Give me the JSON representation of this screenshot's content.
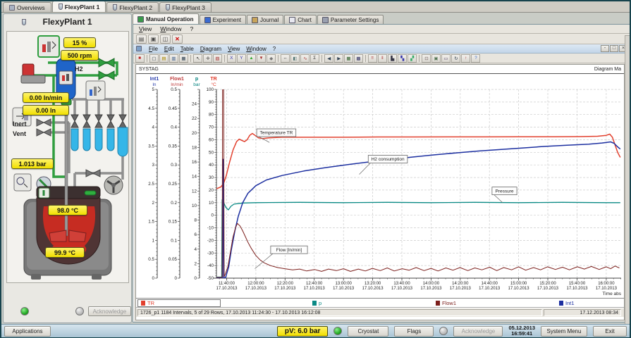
{
  "top_tabs": {
    "items": [
      {
        "label": "Overviews",
        "icon": "monitor-icon",
        "active": false
      },
      {
        "label": "FlexyPlant 1",
        "icon": "flask-icon",
        "active": true
      },
      {
        "label": "FlexyPlant 2",
        "icon": "flask-icon",
        "active": false
      },
      {
        "label": "FlexyPlant 3",
        "icon": "flask-icon",
        "active": false
      }
    ]
  },
  "left_panel": {
    "title": "FlexyPlant 1",
    "badges": {
      "stirrer_percent": "15 %",
      "stirrer_rpm": "500 rpm",
      "gas_flow": "0.00 ln/min",
      "gas_volume": "0.00 ln",
      "pressure": "1.013 bar",
      "temp_top": "98.0 °C",
      "temp_bottom": "99.9 °C"
    },
    "labels": {
      "h2": "H2",
      "inert": "Inert",
      "vent": "Vent"
    },
    "acknowledge_label": "Acknowledge"
  },
  "inner_tabs": {
    "items": [
      {
        "label": "Manual Operation",
        "icon": "grid-green-icon",
        "color": "#3a9a4a",
        "active": true
      },
      {
        "label": "Experiment",
        "icon": "experiment-icon",
        "color": "#3a6ad0",
        "active": false
      },
      {
        "label": "Journal",
        "icon": "journal-icon",
        "color": "#c8a45a",
        "active": false
      },
      {
        "label": "Chart",
        "icon": "chart-icon",
        "color": "#e8e8f0",
        "active": false
      },
      {
        "label": "Parameter Settings",
        "icon": "settings-icon",
        "color": "#9aa0b0",
        "active": false
      }
    ]
  },
  "chart_window": {
    "menu1": [
      "View",
      "Window",
      "?"
    ],
    "toolbar1_icons": [
      {
        "name": "print-icon",
        "glyph": "▤"
      },
      {
        "name": "export-icon",
        "glyph": "▣"
      },
      {
        "name": "window-split-icon",
        "glyph": "◫"
      },
      {
        "name": "close-red-icon",
        "glyph": "✕"
      }
    ],
    "menu2": [
      "File",
      "Edit",
      "Table",
      "Diagram",
      "View",
      "Window",
      "?"
    ],
    "window_buttons": [
      "-",
      "□",
      "×"
    ],
    "toolbar2_icons": [
      {
        "name": "stop-icon",
        "glyph": "■",
        "color": "#b22"
      },
      {
        "name": "new-icon",
        "glyph": "▢",
        "color": "#345"
      },
      {
        "name": "open-icon",
        "glyph": "▤",
        "color": "#a80"
      },
      {
        "name": "save-icon",
        "glyph": "▥",
        "color": "#358"
      },
      {
        "name": "copy-icon",
        "glyph": "▦",
        "color": "#345"
      },
      {
        "name": "cursor-icon",
        "glyph": "↖",
        "color": "#333"
      },
      {
        "name": "snap-icon",
        "glyph": "✛",
        "color": "#333"
      },
      {
        "name": "erase-icon",
        "glyph": "▧",
        "color": "#a33"
      },
      {
        "name": "scale-x-icon",
        "glyph": "X",
        "color": "#33a"
      },
      {
        "name": "scale-y-icon",
        "glyph": "Y",
        "color": "#33a"
      },
      {
        "name": "zoom-in-icon",
        "glyph": "▲",
        "color": "#3a3"
      },
      {
        "name": "zoom-out-icon",
        "glyph": "▼",
        "color": "#a33"
      },
      {
        "name": "zoom-reset-icon",
        "glyph": "◆",
        "color": "#777"
      },
      {
        "name": "pan-icon",
        "glyph": "↔",
        "color": "#333"
      },
      {
        "name": "crop-icon",
        "glyph": "◧",
        "color": "#577"
      },
      {
        "name": "curve-icon",
        "glyph": "∿",
        "color": "#a33"
      },
      {
        "name": "sum-icon",
        "glyph": "Σ",
        "color": "#333"
      },
      {
        "name": "prev-icon",
        "glyph": "◀",
        "color": "#345"
      },
      {
        "name": "next-icon",
        "glyph": "▶",
        "color": "#345"
      },
      {
        "name": "table-icon",
        "glyph": "▦",
        "color": "#363"
      },
      {
        "name": "diagram-icon",
        "glyph": "▩",
        "color": "#336"
      },
      {
        "name": "tile-icon",
        "glyph": "≡",
        "color": "#a33"
      },
      {
        "name": "cascade-icon",
        "glyph": "‖",
        "color": "#a33"
      },
      {
        "name": "legend-icon",
        "glyph": "▙",
        "color": "#334"
      },
      {
        "name": "palette-icon",
        "glyph": "▚",
        "color": "#33a"
      },
      {
        "name": "chart-type-icon",
        "glyph": "▞",
        "color": "#3a6"
      },
      {
        "name": "export-page-icon",
        "glyph": "⊡",
        "color": "#766"
      },
      {
        "name": "image-icon",
        "glyph": "▣",
        "color": "#575"
      },
      {
        "name": "mail-icon",
        "glyph": "▭",
        "color": "#657"
      },
      {
        "name": "refresh-icon",
        "glyph": "↻",
        "color": "#345"
      },
      {
        "name": "up-icon",
        "glyph": "↑",
        "color": "#a33"
      },
      {
        "name": "help-icon",
        "glyph": "?",
        "color": "#36c"
      }
    ],
    "doc_title_left": "SYSTAG",
    "doc_title_right": "Diagram Ma",
    "status_left": "1726_p1 1184 Intervals, 5 of 29 Rows, 17.10.2013 11:24:30 - 17.10.2013 16:12:08",
    "status_right": "17.12.2013 08:34"
  },
  "taskbar": {
    "applications": "Applications",
    "pv_value": "pV: 6.0 bar",
    "cryostat": "Cryostat",
    "flags": "Flags",
    "acknowledge": "Acknowledge",
    "date": "05.12.2013",
    "time": "16:59:41",
    "system_menu": "System Menu",
    "exit": "Exit"
  },
  "chart_data": {
    "type": "line",
    "xlabel": "Time abs",
    "grid": true,
    "x_domain": [
      11.55,
      16.17
    ],
    "x_major_ticks": [
      11.6667,
      12,
      12.3333,
      12.6667,
      13,
      13.3333,
      13.6667,
      14,
      14.3333,
      14.6667,
      15,
      15.3333,
      15.6667,
      16
    ],
    "x_tick_labels": [
      [
        "11:40:00",
        "17.10.2013"
      ],
      [
        "12:00:00",
        "17.10.2013"
      ],
      [
        "12:20:00",
        "17.10.2013"
      ],
      [
        "12:40:00",
        "17.10.2013"
      ],
      [
        "13:00:00",
        "17.10.2013"
      ],
      [
        "13:20:00",
        "17.10.2013"
      ],
      [
        "13:40:00",
        "17.10.2013"
      ],
      [
        "14:00:00",
        "17.10.2013"
      ],
      [
        "14:20:00",
        "17.10.2013"
      ],
      [
        "14:40:00",
        "17.10.2013"
      ],
      [
        "15:00:00",
        "17.10.2013"
      ],
      [
        "15:20:00",
        "17.10.2013"
      ],
      [
        "15:40:00",
        "17.10.2013"
      ],
      [
        "16:00:00",
        "17.10.2013"
      ]
    ],
    "axes": [
      {
        "name": "Int1",
        "unit": "ln",
        "color": "#2b3fae",
        "min": 0,
        "max": 5,
        "label_step": 0.5,
        "hide_top_label": false
      },
      {
        "name": "Flow1",
        "unit": "ln/min",
        "color": "#c04040",
        "min": 0,
        "max": 0.5,
        "label_step": 0.05,
        "hide_top_label": false
      },
      {
        "name": "p",
        "unit": "bar",
        "color": "#00807d",
        "min": 0,
        "max": 26,
        "label_step": 2,
        "hide_top_label": true
      },
      {
        "name": "TR",
        "unit": "°C",
        "color": "#e03a2a",
        "min": -50,
        "max": 100,
        "label_step": 10,
        "hide_top_label": false
      }
    ],
    "series": [
      {
        "name": "TR",
        "axis": "TR",
        "color": "#e2402e",
        "width": 1.5,
        "points": [
          [
            11.55,
            21
          ],
          [
            11.6,
            22.5
          ],
          [
            11.63,
            25
          ],
          [
            11.66,
            31
          ],
          [
            11.7,
            42
          ],
          [
            11.74,
            52
          ],
          [
            11.78,
            58.5
          ],
          [
            11.81,
            60.5
          ],
          [
            11.84,
            59.5
          ],
          [
            11.87,
            58.5
          ],
          [
            11.9,
            60
          ],
          [
            11.93,
            63.5
          ],
          [
            11.96,
            65
          ],
          [
            11.99,
            63.5
          ],
          [
            12.03,
            61.5
          ],
          [
            12.08,
            61
          ],
          [
            12.15,
            61.5
          ],
          [
            12.3,
            62
          ],
          [
            12.6,
            62
          ],
          [
            13,
            62
          ],
          [
            13.4,
            62.2
          ],
          [
            13.8,
            62.2
          ],
          [
            14.2,
            62.3
          ],
          [
            14.6,
            62.3
          ],
          [
            15,
            62.4
          ],
          [
            15.4,
            62.4
          ],
          [
            15.7,
            62.5
          ],
          [
            15.9,
            62.8
          ],
          [
            16,
            63.5
          ],
          [
            16.04,
            64.5
          ],
          [
            16.07,
            62
          ],
          [
            16.1,
            56
          ],
          [
            16.13,
            50
          ],
          [
            16.16,
            46
          ]
        ]
      },
      {
        "name": "p",
        "axis": "p",
        "color": "#0a8a85",
        "width": 1.3,
        "points": [
          [
            11.55,
            0.15
          ],
          [
            11.61,
            0.15
          ],
          [
            11.615,
            10.8
          ],
          [
            11.63,
            10.5
          ],
          [
            11.655,
            9.8
          ],
          [
            11.685,
            9.4
          ],
          [
            11.715,
            9.9
          ],
          [
            11.75,
            10.2
          ],
          [
            11.85,
            10.35
          ],
          [
            12,
            10.4
          ],
          [
            12.5,
            10.45
          ],
          [
            13,
            10.4
          ],
          [
            13.5,
            10.45
          ],
          [
            14,
            10.4
          ],
          [
            14.5,
            10.45
          ],
          [
            15,
            10.4
          ],
          [
            15.5,
            10.45
          ],
          [
            16,
            10.4
          ],
          [
            16.16,
            10.4
          ]
        ]
      },
      {
        "name": "Int1",
        "axis": "Int1",
        "color": "#1c2fa0",
        "width": 1.5,
        "points": [
          [
            11.55,
            0
          ],
          [
            11.62,
            0
          ],
          [
            11.625,
            3.15
          ],
          [
            11.635,
            0
          ],
          [
            11.655,
            0.02
          ],
          [
            11.69,
            0.3
          ],
          [
            11.72,
            0.75
          ],
          [
            11.76,
            1.25
          ],
          [
            11.8,
            1.65
          ],
          [
            11.85,
            2
          ],
          [
            11.91,
            2.25
          ],
          [
            12,
            2.45
          ],
          [
            12.12,
            2.6
          ],
          [
            12.3,
            2.72
          ],
          [
            12.55,
            2.84
          ],
          [
            12.8,
            2.93
          ],
          [
            13.05,
            3.01
          ],
          [
            13.3,
            3.08
          ],
          [
            13.55,
            3.15
          ],
          [
            13.8,
            3.21
          ],
          [
            14.05,
            3.27
          ],
          [
            14.3,
            3.32
          ],
          [
            14.55,
            3.37
          ],
          [
            14.8,
            3.41
          ],
          [
            15.05,
            3.45
          ],
          [
            15.3,
            3.49
          ],
          [
            15.55,
            3.52
          ],
          [
            15.8,
            3.55
          ],
          [
            15.95,
            3.58
          ],
          [
            16.05,
            3.61
          ],
          [
            16.09,
            3.57
          ],
          [
            16.13,
            3.48
          ],
          [
            16.16,
            3.42
          ]
        ]
      },
      {
        "name": "Flow1",
        "axis": "Flow1",
        "color": "#7c1f1c",
        "width": 1,
        "points": [
          [
            11.55,
            0.002
          ],
          [
            11.615,
            0.002
          ],
          [
            11.62,
            0.5
          ],
          [
            11.632,
            0.5
          ],
          [
            11.638,
            0.004
          ],
          [
            11.65,
            0.01
          ],
          [
            11.68,
            0.03
          ],
          [
            11.71,
            0.07
          ],
          [
            11.74,
            0.11
          ],
          [
            11.77,
            0.135
          ],
          [
            11.79,
            0.145
          ],
          [
            11.82,
            0.138
          ],
          [
            11.85,
            0.125
          ],
          [
            11.88,
            0.11
          ],
          [
            11.91,
            0.095
          ],
          [
            11.95,
            0.078
          ],
          [
            12,
            0.06
          ],
          [
            12.05,
            0.048
          ],
          [
            12.1,
            0.04
          ],
          [
            12.17,
            0.033
          ],
          [
            12.25,
            0.028
          ],
          [
            12.33,
            0.025
          ],
          [
            12.42,
            0.022
          ],
          [
            12.5,
            0.024
          ],
          [
            12.58,
            0.019
          ],
          [
            12.67,
            0.023
          ],
          [
            12.75,
            0.018
          ],
          [
            12.83,
            0.024
          ],
          [
            12.92,
            0.02
          ],
          [
            13,
            0.025
          ],
          [
            13.08,
            0.018
          ],
          [
            13.17,
            0.024
          ],
          [
            13.25,
            0.019
          ],
          [
            13.33,
            0.026
          ],
          [
            13.42,
            0.02
          ],
          [
            13.5,
            0.027
          ],
          [
            13.58,
            0.019
          ],
          [
            13.67,
            0.025
          ],
          [
            13.75,
            0.021
          ],
          [
            13.83,
            0.028
          ],
          [
            13.92,
            0.02
          ],
          [
            14,
            0.026
          ],
          [
            14.08,
            0.019
          ],
          [
            14.17,
            0.027
          ],
          [
            14.25,
            0.021
          ],
          [
            14.33,
            0.028
          ],
          [
            14.42,
            0.02
          ],
          [
            14.5,
            0.027
          ],
          [
            14.58,
            0.022
          ],
          [
            14.67,
            0.029
          ],
          [
            14.75,
            0.02
          ],
          [
            14.83,
            0.028
          ],
          [
            14.92,
            0.022
          ],
          [
            15,
            0.03
          ],
          [
            15.08,
            0.021
          ],
          [
            15.17,
            0.028
          ],
          [
            15.25,
            0.022
          ],
          [
            15.33,
            0.03
          ],
          [
            15.42,
            0.023
          ],
          [
            15.5,
            0.029
          ],
          [
            15.58,
            0.022
          ],
          [
            15.67,
            0.03
          ],
          [
            15.75,
            0.024
          ],
          [
            15.83,
            0.031
          ],
          [
            15.92,
            0.023
          ],
          [
            16,
            0.03
          ],
          [
            16.05,
            0.025
          ],
          [
            16.1,
            0.032
          ],
          [
            16.15,
            0.027
          ]
        ]
      }
    ],
    "annotations": [
      {
        "text": "Temperature TR",
        "f": [
          0.0995,
          0.209
        ],
        "a": [
          0.131,
          0.281
        ]
      },
      {
        "text": "H2 consumption",
        "f": [
          0.375,
          0.349
        ],
        "a": [
          0.353,
          0.45
        ]
      },
      {
        "text": "Pressure",
        "f": [
          0.681,
          0.517
        ],
        "a": [
          0.707,
          0.6
        ]
      },
      {
        "text": "Flow [ln/min]",
        "f": [
          0.134,
          0.829
        ],
        "a": [
          0.095,
          0.95
        ]
      }
    ],
    "legend": [
      {
        "name": "TR",
        "color": "#e2402e",
        "selected": true,
        "pos": 2
      },
      {
        "name": "p",
        "color": "#0a8a85",
        "selected": false,
        "pos": 250
      },
      {
        "name": "Flow1",
        "color": "#7c1f1c",
        "selected": false,
        "pos": 425
      },
      {
        "name": "Int1",
        "color": "#1c2fa0",
        "selected": false,
        "pos": 600
      }
    ]
  }
}
